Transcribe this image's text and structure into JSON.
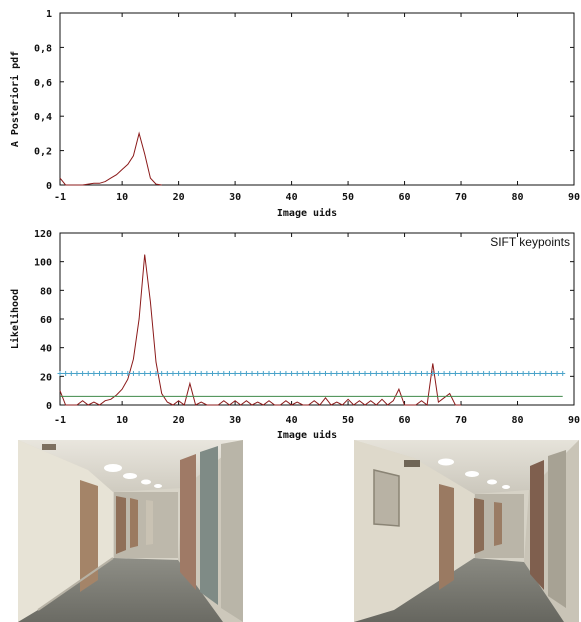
{
  "chart_data": [
    {
      "type": "line",
      "title": "",
      "xlabel": "Image uids",
      "ylabel": "A Posteriori pdf",
      "xlim": [
        -1,
        90
      ],
      "ylim": [
        0,
        1
      ],
      "xticks": [
        "-1",
        "10",
        "20",
        "30",
        "40",
        "50",
        "60",
        "70",
        "80",
        "90"
      ],
      "yticks": [
        "0",
        "0,2",
        "0,4",
        "0,6",
        "0,8",
        "1"
      ],
      "series": [
        {
          "color": "#8b1a1a",
          "x": [
            -1,
            0,
            1,
            2,
            3,
            4,
            5,
            6,
            7,
            8,
            9,
            10,
            11,
            12,
            13,
            14,
            15,
            16,
            17
          ],
          "y": [
            0.04,
            0.0,
            0.0,
            0.0,
            0.0,
            0.005,
            0.01,
            0.01,
            0.02,
            0.04,
            0.06,
            0.09,
            0.12,
            0.17,
            0.3,
            0.18,
            0.04,
            0.005,
            0.0
          ]
        }
      ]
    },
    {
      "type": "line",
      "title": "",
      "xlabel": "Image uids",
      "ylabel": "Likelihood",
      "xlim": [
        -1,
        90
      ],
      "ylim": [
        0,
        120
      ],
      "xticks": [
        "-1",
        "10",
        "20",
        "30",
        "40",
        "50",
        "60",
        "70",
        "80",
        "90"
      ],
      "yticks": [
        "0",
        "20",
        "40",
        "60",
        "80",
        "100",
        "120"
      ],
      "legend_position": "top-right",
      "series": [
        {
          "name": "SIFT keypoints",
          "color": "#8b1a1a",
          "x": [
            -1,
            0,
            1,
            2,
            3,
            4,
            5,
            6,
            7,
            8,
            9,
            10,
            11,
            12,
            13,
            14,
            15,
            16,
            17,
            18,
            19,
            20,
            21,
            22,
            23,
            24,
            25,
            26,
            27,
            28,
            29,
            30,
            31,
            32,
            33,
            34,
            35,
            36,
            37,
            38,
            39,
            40,
            41,
            42,
            43,
            44,
            45,
            46,
            47,
            48,
            49,
            50,
            51,
            52,
            53,
            54,
            55,
            56,
            57,
            58,
            59,
            60,
            61,
            62,
            63,
            64,
            65,
            66,
            67,
            68,
            69,
            70
          ],
          "y": [
            10,
            0,
            0,
            0,
            3,
            0,
            2,
            0,
            3,
            4,
            7,
            11,
            18,
            32,
            60,
            105,
            72,
            30,
            8,
            2,
            0,
            3,
            0,
            15,
            0,
            2,
            0,
            0,
            0,
            3,
            0,
            3,
            0,
            3,
            0,
            2,
            0,
            3,
            0,
            0,
            3,
            0,
            2,
            0,
            0,
            3,
            0,
            5,
            0,
            2,
            0,
            4,
            0,
            3,
            0,
            3,
            0,
            4,
            0,
            3,
            11,
            0,
            0,
            0,
            3,
            0,
            29,
            2,
            5,
            8,
            0,
            0
          ]
        },
        {
          "color": "#4aa3c9",
          "marker": "+",
          "x": [
            -1,
            88
          ],
          "y": [
            22,
            22
          ]
        },
        {
          "color": "#3f8a4a",
          "x": [
            -1,
            88
          ],
          "y": [
            6,
            6
          ]
        }
      ]
    }
  ]
}
